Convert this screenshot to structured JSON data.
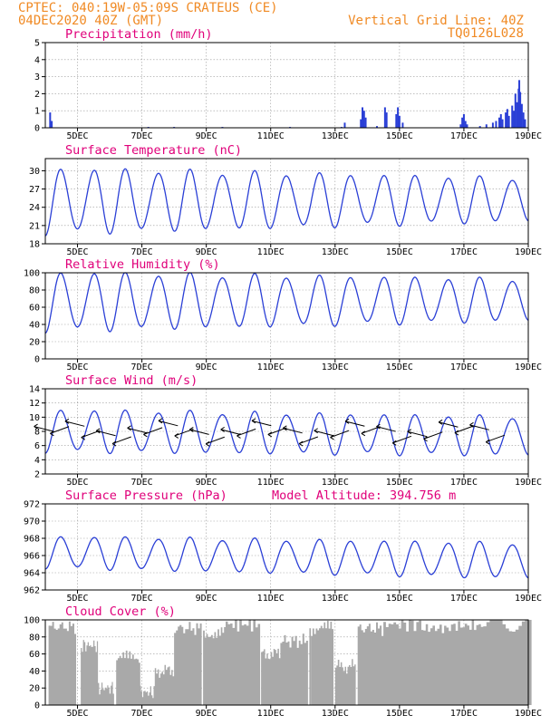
{
  "header": {
    "line1_left": "CPTEC:   040:19W-05:09S   CRATEUS (CE)",
    "line2_left": "04DEC2020 40Z (GMT)",
    "line2_right": "Vertical Grid Line: 40Z",
    "line3_right": "TQ0126L028"
  },
  "colors": {
    "header": "#f08a24",
    "title": "#e0007a",
    "series": "#2a3fd6",
    "cloud": "#a9a9a9",
    "grid": "#9a9a9a"
  },
  "x_axis": {
    "start_day": 4,
    "end_day": 19,
    "tick_days": [
      5,
      7,
      9,
      11,
      13,
      15,
      17,
      19
    ],
    "tick_labels": [
      "5DEC",
      "7DEC",
      "9DEC",
      "11DEC",
      "13DEC",
      "15DEC",
      "17DEC",
      "19DEC"
    ]
  },
  "chart_data": [
    {
      "id": "precip",
      "type": "bar",
      "title": "Precipitation (mm/h)",
      "ylim": [
        0,
        5
      ],
      "yticks": [
        0,
        1,
        2,
        3,
        4,
        5
      ],
      "bars": [
        [
          4.15,
          0.9
        ],
        [
          4.2,
          0.4
        ],
        [
          7.2,
          0.05
        ],
        [
          8.0,
          0.05
        ],
        [
          9.5,
          0.05
        ],
        [
          11.6,
          0.05
        ],
        [
          13.2,
          0.05
        ],
        [
          13.3,
          0.3
        ],
        [
          13.8,
          0.5
        ],
        [
          13.85,
          1.2
        ],
        [
          13.9,
          1.0
        ],
        [
          13.95,
          0.6
        ],
        [
          14.3,
          0.1
        ],
        [
          14.55,
          1.2
        ],
        [
          14.6,
          0.9
        ],
        [
          14.9,
          0.8
        ],
        [
          14.95,
          1.2
        ],
        [
          15.0,
          0.7
        ],
        [
          15.1,
          0.3
        ],
        [
          16.9,
          0.2
        ],
        [
          16.95,
          0.6
        ],
        [
          17.0,
          0.8
        ],
        [
          17.05,
          0.4
        ],
        [
          17.1,
          0.2
        ],
        [
          17.5,
          0.1
        ],
        [
          17.7,
          0.2
        ],
        [
          17.9,
          0.3
        ],
        [
          18.0,
          0.4
        ],
        [
          18.1,
          0.6
        ],
        [
          18.15,
          0.8
        ],
        [
          18.2,
          0.5
        ],
        [
          18.3,
          0.9
        ],
        [
          18.35,
          1.1
        ],
        [
          18.4,
          0.7
        ],
        [
          18.5,
          1.3
        ],
        [
          18.55,
          1.0
        ],
        [
          18.6,
          2.0
        ],
        [
          18.65,
          1.5
        ],
        [
          18.7,
          2.3
        ],
        [
          18.72,
          2.8
        ],
        [
          18.75,
          2.1
        ],
        [
          18.8,
          1.4
        ],
        [
          18.85,
          0.9
        ],
        [
          18.9,
          0.5
        ]
      ]
    },
    {
      "id": "temp",
      "type": "line",
      "title": "Surface Temperature (nC)",
      "ylim": [
        18,
        32
      ],
      "yticks": [
        18,
        21,
        24,
        27,
        30
      ],
      "diurnal": {
        "mean_max": 30.3,
        "mean_min": 19.8,
        "max_trend": -1.6,
        "min_trend": 2.0
      }
    },
    {
      "id": "rh",
      "type": "line",
      "title": "Relative Humidity (%)",
      "ylim": [
        0,
        100
      ],
      "yticks": [
        0,
        20,
        40,
        60,
        80,
        100
      ],
      "diurnal": {
        "mean_max": 100,
        "mean_min": 33,
        "max_trend": -8,
        "min_trend": 12
      }
    },
    {
      "id": "wind",
      "type": "line",
      "title": "Surface Wind (m/s)",
      "ylim": [
        2,
        14
      ],
      "yticks": [
        2,
        4,
        6,
        8,
        10,
        12,
        14
      ],
      "diurnal": {
        "mean_max": 11.0,
        "mean_min": 5.2,
        "max_trend": -1.0,
        "min_trend": -0.5
      },
      "vectors": {
        "count": 30,
        "level": 8
      }
    },
    {
      "id": "pres",
      "type": "line",
      "title": "Surface Pressure (hPa)",
      "subtitle": "Model Altitude: 394.756 m",
      "ylim": [
        962,
        972
      ],
      "yticks": [
        962,
        964,
        966,
        968,
        970,
        972
      ],
      "diurnal": {
        "mean_max": 968.2,
        "mean_min": 964.6,
        "max_trend": -0.8,
        "min_trend": -1.2
      }
    },
    {
      "id": "cloud",
      "type": "area",
      "title": "Cloud Cover (%)",
      "ylim": [
        0,
        100
      ],
      "yticks": [
        0,
        20,
        40,
        60,
        80,
        100
      ],
      "segments": [
        [
          4.1,
          4.9,
          92
        ],
        [
          5.1,
          5.6,
          70
        ],
        [
          5.6,
          6.1,
          20
        ],
        [
          6.2,
          6.9,
          55
        ],
        [
          6.9,
          7.4,
          15
        ],
        [
          7.4,
          8.0,
          40
        ],
        [
          8.0,
          8.8,
          90
        ],
        [
          8.9,
          9.6,
          85
        ],
        [
          9.6,
          10.6,
          95
        ],
        [
          10.7,
          11.3,
          60
        ],
        [
          11.3,
          12.1,
          75
        ],
        [
          12.2,
          12.9,
          90
        ],
        [
          13.0,
          13.6,
          45
        ],
        [
          13.7,
          14.5,
          90
        ],
        [
          14.5,
          15.6,
          95
        ],
        [
          15.6,
          16.6,
          90
        ],
        [
          16.6,
          17.6,
          93
        ],
        [
          17.6,
          19.0,
          95
        ]
      ]
    }
  ]
}
